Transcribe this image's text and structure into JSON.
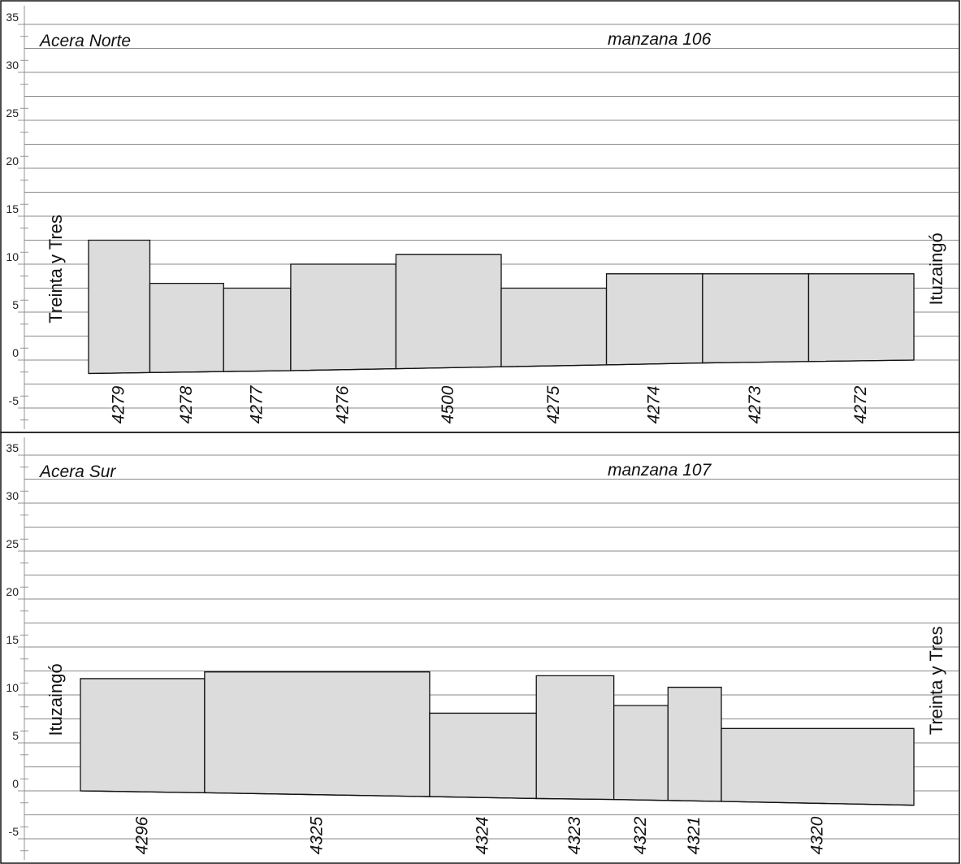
{
  "chart_data": [
    {
      "type": "bar",
      "panel": "Acera Norte",
      "title_left": "Acera Norte",
      "title_right": "manzana 106",
      "street_left": "Treinta y Tres",
      "street_right": "Ituzaingó",
      "yticks": [
        35,
        30,
        25,
        20,
        15,
        10,
        5,
        0,
        -5
      ],
      "ylim": [
        -7.5,
        36
      ],
      "grid": true,
      "bars": [
        {
          "lot": "4279",
          "top": 12.5,
          "base_start": -1.4,
          "base_end": -1.3,
          "w": 0.074
        },
        {
          "lot": "4278",
          "top": 8.0,
          "base_start": -1.3,
          "base_end": -1.2,
          "w": 0.089
        },
        {
          "lot": "4277",
          "top": 7.5,
          "base_start": -1.2,
          "base_end": -1.1,
          "w": 0.081
        },
        {
          "lot": "4276",
          "top": 10.0,
          "base_start": -1.1,
          "base_end": -0.9,
          "w": 0.127
        },
        {
          "lot": "4500",
          "top": 11.0,
          "base_start": -0.9,
          "base_end": -0.7,
          "w": 0.127
        },
        {
          "lot": "4275",
          "top": 7.5,
          "base_start": -0.7,
          "base_end": -0.5,
          "w": 0.127
        },
        {
          "lot": "4274",
          "top": 9.0,
          "base_start": -0.5,
          "base_end": -0.3,
          "w": 0.116
        },
        {
          "lot": "4273",
          "top": 9.0,
          "base_start": -0.3,
          "base_end": -0.15,
          "w": 0.128
        },
        {
          "lot": "4272",
          "top": 9.0,
          "base_start": -0.15,
          "base_end": 0.0,
          "w": 0.127
        }
      ]
    },
    {
      "type": "bar",
      "panel": "Acera Sur",
      "title_left": "Acera Sur",
      "title_right": "manzana 107",
      "street_left": "Ituzaingó",
      "street_right": "Treinta y Tres",
      "yticks": [
        35,
        30,
        25,
        20,
        15,
        10,
        5,
        0,
        -5
      ],
      "ylim": [
        -7.5,
        36
      ],
      "grid": true,
      "bars": [
        {
          "lot": "4296",
          "top": 11.7,
          "base_start": 0.0,
          "base_end": -0.2,
          "w": 0.149
        },
        {
          "lot": "4325",
          "top": 12.4,
          "base_start": -0.2,
          "base_end": -0.6,
          "w": 0.27
        },
        {
          "lot": "4324",
          "top": 8.1,
          "base_start": -0.6,
          "base_end": -0.8,
          "w": 0.128
        },
        {
          "lot": "4323",
          "top": 12.0,
          "base_start": -0.8,
          "base_end": -0.9,
          "w": 0.093
        },
        {
          "lot": "4322",
          "top": 8.9,
          "base_start": -0.9,
          "base_end": -1.0,
          "w": 0.065
        },
        {
          "lot": "4321",
          "top": 10.8,
          "base_start": -1.0,
          "base_end": -1.1,
          "w": 0.064
        },
        {
          "lot": "4320",
          "top": 6.5,
          "base_start": -1.1,
          "base_end": -1.5,
          "w": 0.231
        }
      ]
    }
  ]
}
